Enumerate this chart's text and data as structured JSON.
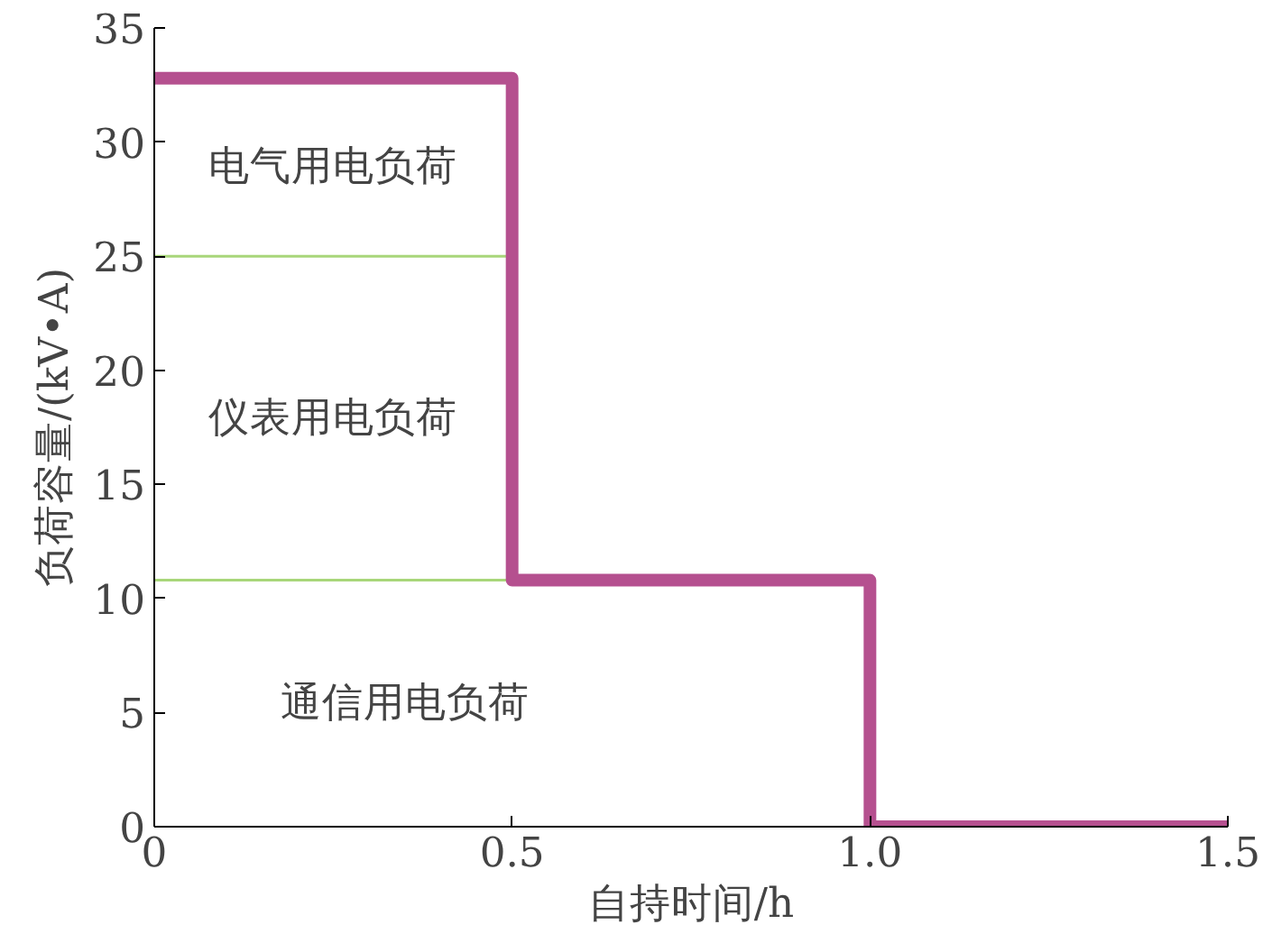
{
  "chart_data": {
    "type": "step",
    "xlabel": "自持时间/h",
    "ylabel": "负荷容量/(kV•A)",
    "x": [
      0,
      0.5,
      1.0,
      1.5
    ],
    "series": [
      {
        "color": "#b5508f",
        "values": [
          32.8,
          10.8,
          0,
          0
        ]
      }
    ],
    "xlim": [
      0,
      1.5
    ],
    "xticks": [
      0,
      0.5,
      {
        "value": 1,
        "label": "1.0"
      },
      1.5
    ],
    "ylim": [
      0,
      35
    ],
    "yticks": [
      0,
      5,
      10,
      15,
      20,
      25,
      30,
      35
    ],
    "ref_lines": [
      {
        "axis": "y",
        "value": 25,
        "color": "#a8d67a"
      },
      {
        "axis": "y",
        "value": 10.8,
        "color": "#a8d67a"
      }
    ],
    "annotations": [
      "电气用电负荷",
      "仪表用电负荷",
      "通信用电负荷"
    ],
    "grid": false
  }
}
